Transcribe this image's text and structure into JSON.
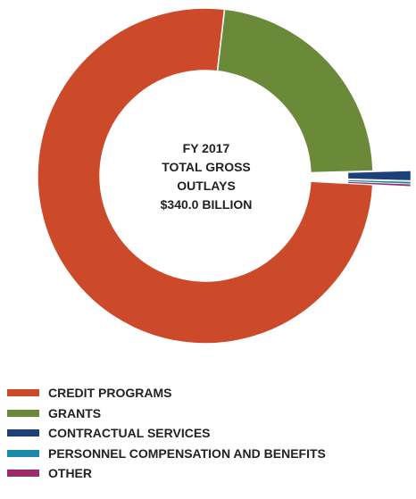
{
  "chart_data": {
    "type": "pie",
    "center_label": [
      "FY 2017",
      "TOTAL GROSS",
      "OUTLAYS",
      "$340.0 BILLION"
    ],
    "slices": [
      {
        "name": "CREDIT PROGRAMS",
        "share": 0.76,
        "color": "#cc4a2a",
        "exploded": false
      },
      {
        "name": "GRANTS",
        "share": 0.227,
        "color": "#6a8a3a",
        "exploded": false
      },
      {
        "name": "CONTRACTUAL SERVICES",
        "share": 0.009,
        "color": "#1f3f7a",
        "exploded": true
      },
      {
        "name": "PERSONNEL COMPENSATION AND BENEFITS",
        "share": 0.002,
        "color": "#1a8aa8",
        "exploded": true
      },
      {
        "name": "OTHER",
        "share": 0.002,
        "color": "#9a2a6a",
        "exploded": true
      }
    ],
    "legend_position": "bottom-left"
  }
}
